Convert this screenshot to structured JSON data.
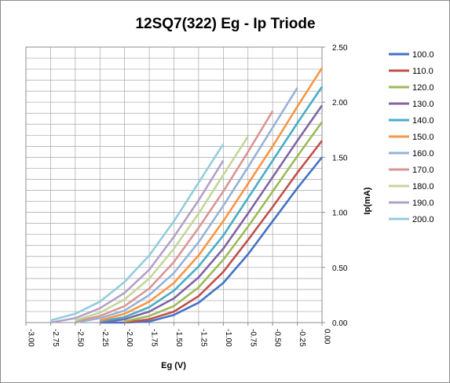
{
  "chart_data": {
    "type": "line",
    "title": "12SQ7(322) Eg - Ip Triode",
    "xlabel": "Eg (V)",
    "ylabel": "Ip(mA)",
    "xlim": [
      -3.0,
      0.0
    ],
    "ylim": [
      0.0,
      2.5
    ],
    "x_ticks": [
      "-3.00",
      "-2.75",
      "-2.50",
      "-2.25",
      "-2.00",
      "-1.75",
      "-1.50",
      "-1.25",
      "-1.00",
      "-0.75",
      "-0.50",
      "-0.25",
      "0.00"
    ],
    "y_ticks": [
      "0.00",
      "0.50",
      "1.00",
      "1.50",
      "2.00",
      "2.50"
    ],
    "y_axis_side": "right",
    "grid": true,
    "legend_position": "right",
    "series": [
      {
        "name": "100.0",
        "color": "#4472C4",
        "x": [
          -2.25,
          -2.0,
          -1.75,
          -1.5,
          -1.25,
          -1.0,
          -0.75,
          -0.5,
          -0.25,
          0.0
        ],
        "y": [
          0.0,
          0.0,
          0.01,
          0.07,
          0.18,
          0.36,
          0.62,
          0.92,
          1.22,
          1.5
        ]
      },
      {
        "name": "110.0",
        "color": "#C0504D",
        "x": [
          -2.0,
          -1.75,
          -1.5,
          -1.25,
          -1.0,
          -0.75,
          -0.5,
          -0.25,
          0.0
        ],
        "y": [
          0.0,
          0.03,
          0.1,
          0.24,
          0.46,
          0.75,
          1.05,
          1.36,
          1.65
        ]
      },
      {
        "name": "120.0",
        "color": "#9BBB59",
        "x": [
          -2.0,
          -1.75,
          -1.5,
          -1.25,
          -1.0,
          -0.75,
          -0.5,
          -0.25,
          0.0
        ],
        "y": [
          0.01,
          0.06,
          0.15,
          0.32,
          0.57,
          0.87,
          1.19,
          1.51,
          1.82
        ]
      },
      {
        "name": "130.0",
        "color": "#8064A2",
        "x": [
          -2.25,
          -2.0,
          -1.75,
          -1.5,
          -1.25,
          -1.0,
          -0.75,
          -0.5,
          -0.25,
          0.0
        ],
        "y": [
          0.0,
          0.03,
          0.1,
          0.22,
          0.41,
          0.67,
          0.99,
          1.32,
          1.65,
          1.97
        ]
      },
      {
        "name": "140.0",
        "color": "#4BACC6",
        "x": [
          -2.25,
          -2.0,
          -1.75,
          -1.5,
          -1.25,
          -1.0,
          -0.75,
          -0.5,
          -0.25,
          0.0
        ],
        "y": [
          0.01,
          0.05,
          0.14,
          0.29,
          0.51,
          0.79,
          1.13,
          1.47,
          1.81,
          2.14
        ]
      },
      {
        "name": "150.0",
        "color": "#F79646",
        "x": [
          -2.25,
          -2.0,
          -1.75,
          -1.5,
          -1.25,
          -1.0,
          -0.75,
          -0.5,
          -0.25,
          0.0
        ],
        "y": [
          0.02,
          0.08,
          0.19,
          0.36,
          0.61,
          0.92,
          1.26,
          1.6,
          1.96,
          2.31
        ]
      },
      {
        "name": "160.0",
        "color": "#95B3D7",
        "x": [
          -2.5,
          -2.25,
          -2.0,
          -1.75,
          -1.5,
          -1.25,
          -1.0,
          -0.75,
          -0.5,
          -0.25
        ],
        "y": [
          0.0,
          0.04,
          0.11,
          0.25,
          0.45,
          0.73,
          1.06,
          1.41,
          1.77,
          2.13
        ]
      },
      {
        "name": "170.0",
        "color": "#D99694",
        "x": [
          -2.5,
          -2.25,
          -2.0,
          -1.75,
          -1.5,
          -1.25,
          -1.0,
          -0.75,
          -0.5
        ],
        "y": [
          0.01,
          0.06,
          0.15,
          0.31,
          0.55,
          0.86,
          1.19,
          1.55,
          1.92
        ]
      },
      {
        "name": "180.0",
        "color": "#C3D69B",
        "x": [
          -2.5,
          -2.25,
          -2.0,
          -1.75,
          -1.5,
          -1.25,
          -1.0,
          -0.75
        ],
        "y": [
          0.02,
          0.09,
          0.21,
          0.4,
          0.67,
          0.99,
          1.34,
          1.69
        ]
      },
      {
        "name": "190.0",
        "color": "#B2A1C7",
        "x": [
          -2.75,
          -2.5,
          -2.25,
          -2.0,
          -1.75,
          -1.5,
          -1.25,
          -1.0
        ],
        "y": [
          0.0,
          0.04,
          0.13,
          0.27,
          0.48,
          0.78,
          1.11,
          1.47
        ]
      },
      {
        "name": "200.0",
        "color": "#93CDDD",
        "x": [
          -2.75,
          -2.5,
          -2.25,
          -2.0,
          -1.75,
          -1.5,
          -1.25,
          -1.0
        ],
        "y": [
          0.02,
          0.08,
          0.19,
          0.37,
          0.61,
          0.92,
          1.27,
          1.62
        ]
      }
    ]
  }
}
